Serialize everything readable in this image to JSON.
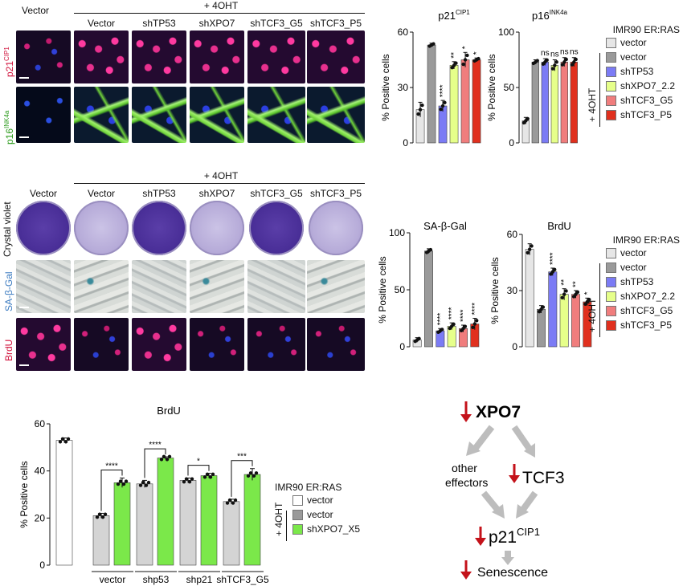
{
  "panel_a": {
    "vector_label": "Vector",
    "ohtlabel": "+ 4OHT",
    "columns": [
      "Vector",
      "shTP53",
      "shXPO7",
      "shTCF3_G5",
      "shTCF3_P5"
    ],
    "row1_label": "p21",
    "row1_sup": "CIP1",
    "row2_label": "p16",
    "row2_sup": "INK4a"
  },
  "panel_b": {
    "vector_label": "Vector",
    "ohtlabel": "+ 4OHT",
    "columns": [
      "Vector",
      "shTP53",
      "shXPO7",
      "shTCF3_G5",
      "shTCF3_P5"
    ],
    "row1_label": "Crystal  violet",
    "row2_label": "SA-β-Gal",
    "row3_label": "BrdU"
  },
  "legend1": {
    "title": "IMR90 ER:RAS",
    "items": [
      "vector",
      "vector",
      "shTP53",
      "shXPO7_2.2",
      "shTCF3_G5",
      "shTCF3_P5"
    ],
    "colors": [
      "#e6e6e6",
      "#9a9a9a",
      "#7b7bf5",
      "#e6ff8a",
      "#f07d7d",
      "#e0301e"
    ],
    "oht": "+ 4OHT"
  },
  "legend2": {
    "title": "IMR90 ER:RAS",
    "items": [
      "vector",
      "vector",
      "shTP53",
      "shXPO7_2.2",
      "shTCF3_G5",
      "shTCF3_P5"
    ],
    "colors": [
      "#e6e6e6",
      "#9a9a9a",
      "#7b7bf5",
      "#e6ff8a",
      "#f07d7d",
      "#e0301e"
    ],
    "oht": "+ 4OHT"
  },
  "legend3": {
    "title": "IMR90 ER:RAS",
    "items": [
      "vector",
      "vector",
      "shXPO7_X5"
    ],
    "colors": [
      "#ffffff",
      "#9a9a9a",
      "#7be84a"
    ],
    "oht": "+ 4OHT"
  },
  "chart_data": [
    {
      "type": "bar",
      "title": "p21",
      "title_sup": "CIP1",
      "ylabel": "% Positive cells",
      "ylim": [
        0,
        60
      ],
      "yticks": [
        0,
        30,
        60
      ],
      "categories": [
        "vector",
        "vector",
        "shTP53",
        "shXPO7_2.2",
        "shTCF3_G5",
        "shTCF3_P5"
      ],
      "values": [
        18,
        53,
        20,
        42,
        45,
        45
      ],
      "errors": [
        4,
        1,
        3,
        2,
        4,
        1
      ],
      "significance": [
        "",
        "",
        "****",
        "**",
        "*",
        "*"
      ]
    },
    {
      "type": "bar",
      "title": "p16",
      "title_sup": "INK4a",
      "ylabel": "% Positive cells",
      "ylim": [
        0,
        100
      ],
      "yticks": [
        0,
        50,
        100
      ],
      "categories": [
        "vector",
        "vector",
        "shTP53",
        "shXPO7_2.2",
        "shTCF3_G5",
        "shTCF3_P5"
      ],
      "values": [
        20,
        73,
        73,
        70,
        73,
        73
      ],
      "errors": [
        3,
        2,
        3,
        5,
        4,
        4
      ],
      "significance": [
        "",
        "",
        "ns",
        "ns",
        "ns",
        "ns"
      ]
    },
    {
      "type": "bar",
      "title": "SA-β-Gal",
      "ylabel": "% Positive cells",
      "ylim": [
        0,
        100
      ],
      "yticks": [
        0,
        50,
        100
      ],
      "categories": [
        "vector",
        "vector",
        "shTP53",
        "shXPO7_2.2",
        "shTCF3_G5",
        "shTCF3_P5"
      ],
      "values": [
        6,
        84,
        14,
        18,
        16,
        20
      ],
      "errors": [
        2,
        2,
        2,
        3,
        3,
        5
      ],
      "significance": [
        "",
        "",
        "****",
        "****",
        "****",
        "****"
      ]
    },
    {
      "type": "bar",
      "title": "BrdU",
      "ylabel": "% Positive cells",
      "ylim": [
        0,
        60
      ],
      "yticks": [
        0,
        30,
        60
      ],
      "categories": [
        "vector",
        "vector",
        "shTP53",
        "shXPO7_2.2",
        "shTCF3_G5",
        "shTCF3_P5"
      ],
      "values": [
        52,
        20,
        40,
        28,
        28,
        24
      ],
      "errors": [
        3,
        2,
        2,
        3,
        2,
        2
      ],
      "significance": [
        "",
        "",
        "****",
        "**",
        "**",
        "*"
      ]
    },
    {
      "type": "bar",
      "title": "BrdU",
      "ylabel": "% Positive cells",
      "ylim": [
        0,
        60
      ],
      "yticks": [
        0,
        20,
        40,
        60
      ],
      "groups": [
        "vector",
        "shp53",
        "shp21",
        "shTCF3_G5"
      ],
      "series": [
        {
          "name": "vector",
          "values": [
            53,
            null,
            null,
            null
          ]
        },
        {
          "name": "vector",
          "values": [
            21,
            34.5,
            36,
            27
          ]
        },
        {
          "name": "shXPO7_X5",
          "values": [
            35,
            45.5,
            38,
            38.5
          ]
        }
      ],
      "errors": [
        1,
        1,
        2,
        2,
        1,
        1,
        1,
        2
      ],
      "significance": [
        "****",
        "****",
        "*",
        "***"
      ]
    }
  ],
  "diagram": {
    "nodes": [
      "XPO7",
      "other\neffectors",
      "TCF3",
      "p21",
      "CIP1",
      "Senescence"
    ],
    "other_line1": "other",
    "other_line2": "effectors"
  }
}
